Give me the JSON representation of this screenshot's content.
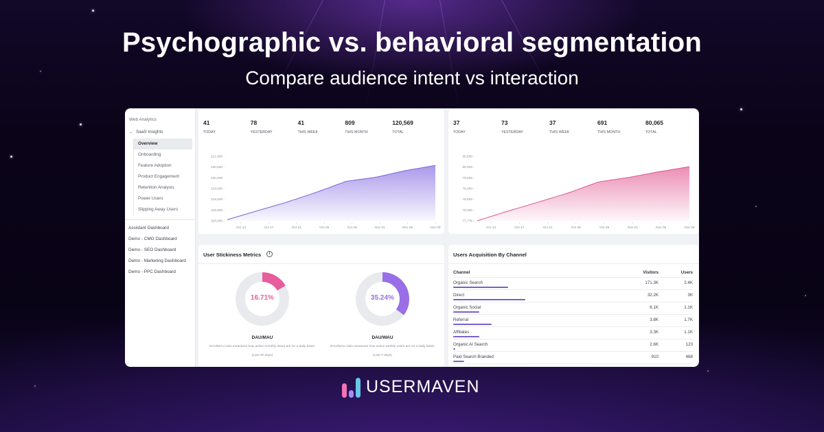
{
  "hero": {
    "title": "Psychographic vs. behavioral segmentation",
    "subtitle": "Compare audience intent vs interaction"
  },
  "sidebar": {
    "section_title": "Web Analytics",
    "group_label": "SaaS Insights",
    "group_items": [
      {
        "label": "Overview",
        "active": true
      },
      {
        "label": "Onboarding"
      },
      {
        "label": "Feature Adoption"
      },
      {
        "label": "Product Engagement"
      },
      {
        "label": "Retention Analysis"
      },
      {
        "label": "Power Users"
      },
      {
        "label": "Slipping Away Users"
      }
    ],
    "links": [
      {
        "label": "Assistant Dashboard"
      },
      {
        "label": "Demo - CMO Dashboard"
      },
      {
        "label": "Demo - SEO Dashboard"
      },
      {
        "label": "Demo - Marketing Dashboard"
      },
      {
        "label": "Demo - PPC Dashboard"
      }
    ]
  },
  "visitors_card": {
    "stats": [
      {
        "value": "41",
        "label": "TODAY"
      },
      {
        "value": "78",
        "label": "YESTERDAY"
      },
      {
        "value": "41",
        "label": "THIS WEEK"
      },
      {
        "value": "809",
        "label": "THIS MONTH"
      },
      {
        "value": "120,569",
        "label": "TOTAL"
      }
    ]
  },
  "users_card": {
    "stats": [
      {
        "value": "37",
        "label": "TODAY"
      },
      {
        "value": "73",
        "label": "YESTERDAY"
      },
      {
        "value": "37",
        "label": "THIS WEEK"
      },
      {
        "value": "691",
        "label": "THIS MONTH"
      },
      {
        "value": "80,065",
        "label": "TOTAL"
      }
    ]
  },
  "chart_data": [
    {
      "type": "area",
      "title": "",
      "color": "#9b87e8",
      "x": [
        "Oct 13",
        "Oct 17",
        "Oct 21",
        "Oct 25",
        "Oct 29",
        "Nov 01",
        "Nov 05",
        "Nov 09"
      ],
      "values": [
        118000,
        118420,
        118830,
        119300,
        119820,
        120010,
        120330,
        120569
      ],
      "yticks": [
        "121,000",
        "120,500",
        "120,000",
        "119,500",
        "119,000",
        "118,500",
        "118,000"
      ],
      "ylim": [
        117950,
        121000
      ],
      "grid": false
    },
    {
      "type": "area",
      "title": "",
      "color": "#e879a8",
      "x": [
        "Oct 13",
        "Oct 17",
        "Oct 21",
        "Oct 25",
        "Oct 29",
        "Nov 01",
        "Nov 05",
        "Nov 09"
      ],
      "values": [
        77776,
        78180,
        78560,
        78950,
        79420,
        79610,
        79850,
        80065
      ],
      "yticks": [
        "80,500",
        "80,000",
        "79,500",
        "79,000",
        "78,500",
        "78,000",
        "77,776"
      ],
      "ylim": [
        77776,
        80500
      ],
      "grid": false
    }
  ],
  "stickiness": {
    "title": "User Stickiness Metrics",
    "info_icon": "i",
    "metrics": [
      {
        "value": "16.71%",
        "percent": 16.71,
        "name": "DAU/MAU",
        "description": "DAU/MAU ratio measures how active monthly users are on a daily basis.",
        "period": "(Last 30 days)",
        "color": "#e85d9c"
      },
      {
        "value": "35.24%",
        "percent": 35.24,
        "name": "DAU/WAU",
        "description": "DAU/WAU ratio measures how active weekly users are on a daily basis.",
        "period": "(Last 7 days)",
        "color": "#9a6ee6"
      }
    ]
  },
  "acquisition": {
    "title": "Users Acquisition By Channel",
    "columns": [
      "Channel",
      "Visitors",
      "Users"
    ],
    "rows": [
      {
        "channel": "Organic Search",
        "visitors": "171.3K",
        "users": "2.4K",
        "bar_pct": 23
      },
      {
        "channel": "Direct",
        "visitors": "32.2K",
        "users": "3K",
        "bar_pct": 30
      },
      {
        "channel": "Organic Social",
        "visitors": "6.1K",
        "users": "1.1K",
        "bar_pct": 11
      },
      {
        "channel": "Referral",
        "visitors": "3.8K",
        "users": "1.7K",
        "bar_pct": 16
      },
      {
        "channel": "Affiliates",
        "visitors": "3.3K",
        "users": "1.1K",
        "bar_pct": 11
      },
      {
        "channel": "Organic AI Search",
        "visitors": "2.6K",
        "users": "123",
        "bar_pct": 1
      },
      {
        "channel": "Paid Search Branded",
        "visitors": "910",
        "users": "468",
        "bar_pct": 4.5
      }
    ]
  },
  "brand": {
    "name": "USERMAVEN",
    "mark_colors": [
      "#f472b6",
      "#a78bfa",
      "#67c7ea"
    ]
  }
}
